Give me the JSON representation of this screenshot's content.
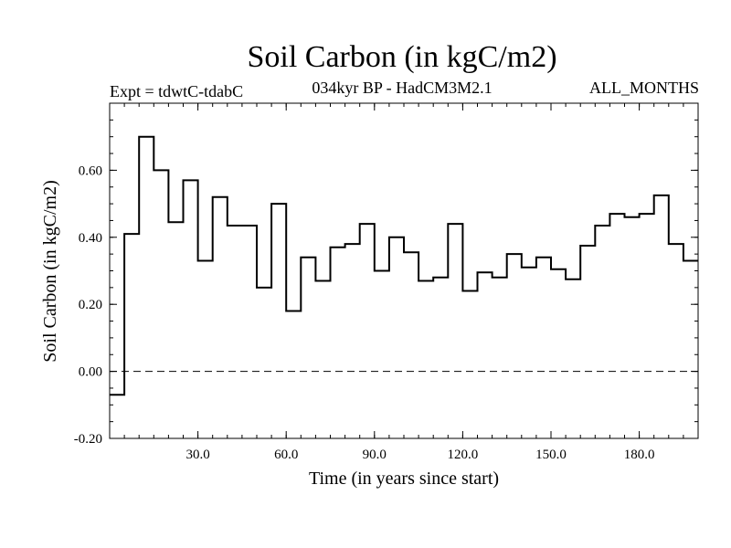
{
  "chart_data": {
    "type": "line",
    "style": "step",
    "title": "Soil Carbon (in kgC/m2)",
    "subtitle": "034kyr BP - HadCM3M2.1",
    "left_label": "Expt = tdwtC-tdabC",
    "right_label": "ALL_MONTHS",
    "xlabel": "Time (in years since start)",
    "ylabel": "Soil Carbon (in kgC/m2)",
    "xlim": [
      0,
      200
    ],
    "ylim": [
      -0.2,
      0.8
    ],
    "xticks": [
      30,
      60,
      90,
      120,
      150,
      180
    ],
    "xtick_labels": [
      "30.0",
      "60.0",
      "90.0",
      "120.0",
      "150.0",
      "180.0"
    ],
    "yticks": [
      -0.2,
      0.0,
      0.2,
      0.4,
      0.6
    ],
    "ytick_labels": [
      "-0.20",
      "0.00",
      "0.20",
      "0.40",
      "0.60"
    ],
    "reference_line": 0.0,
    "series": [
      {
        "name": "Soil Carbon",
        "bin_width": 5,
        "x_start": 0,
        "values": [
          -0.07,
          0.41,
          0.7,
          0.6,
          0.445,
          0.57,
          0.33,
          0.52,
          0.435,
          0.435,
          0.25,
          0.5,
          0.18,
          0.34,
          0.27,
          0.37,
          0.38,
          0.44,
          0.3,
          0.4,
          0.355,
          0.27,
          0.28,
          0.44,
          0.24,
          0.295,
          0.28,
          0.35,
          0.31,
          0.34,
          0.305,
          0.275,
          0.375,
          0.435,
          0.47,
          0.46,
          0.47,
          0.525,
          0.38,
          0.33
        ]
      }
    ]
  }
}
